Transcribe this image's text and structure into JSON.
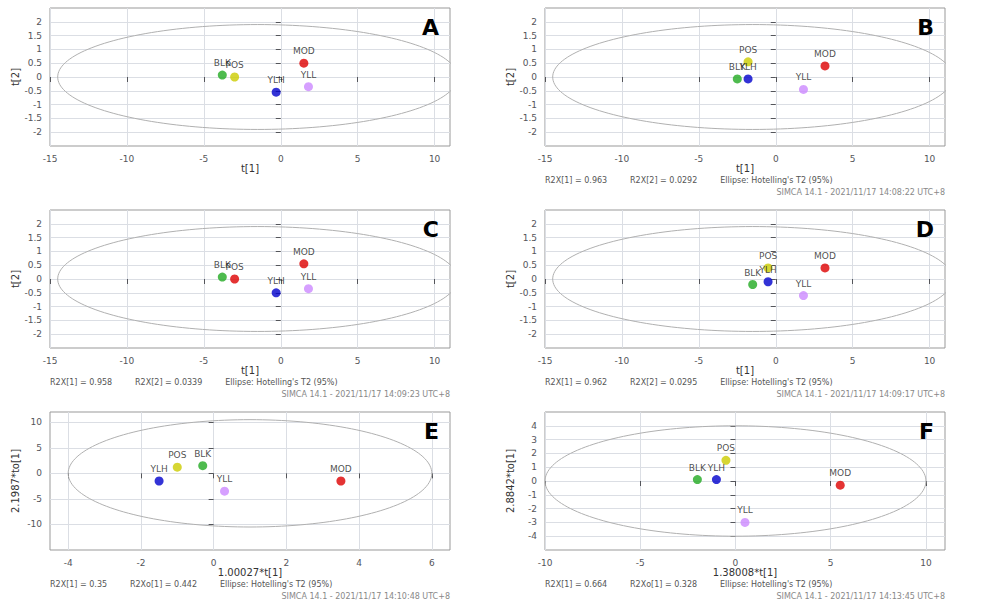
{
  "chart_data": [
    {
      "type": "scatter",
      "title": "A",
      "xlabel": "t[1]",
      "ylabel": "t[2]",
      "xlim": [
        -15,
        11
      ],
      "ylim": [
        -2.5,
        2.5
      ],
      "xticks": [
        -15,
        -10,
        -5,
        0,
        5,
        10
      ],
      "yticks": [
        -2,
        -1.5,
        -1,
        -0.5,
        0,
        0.5,
        1,
        1.5,
        2
      ],
      "grid": true,
      "labels": [
        "MOD",
        "BLK",
        "POS",
        "YLH",
        "YLL"
      ],
      "x": [
        1.5,
        -3.8,
        -3.0,
        -0.3,
        1.8
      ],
      "values": [
        0.5,
        0.07,
        0.0,
        -0.55,
        -0.35
      ],
      "colors": [
        "#dd0000",
        "#22aa22",
        "#cccc00",
        "#0000cc",
        "#cc88ff"
      ],
      "ellipse": {
        "cx": -1.5,
        "cy": 0,
        "rx": 13.0,
        "ry": 1.9
      }
    },
    {
      "type": "scatter",
      "title": "B",
      "xlabel": "t[1]",
      "ylabel": "t[2]",
      "xlim": [
        -15,
        11
      ],
      "ylim": [
        -2.5,
        2.5
      ],
      "xticks": [
        -15,
        -10,
        -5,
        0,
        5,
        10
      ],
      "yticks": [
        -2,
        -1.5,
        -1,
        -0.5,
        0,
        0.5,
        1,
        1.5,
        2
      ],
      "grid": true,
      "labels": [
        "MOD",
        "POS",
        "BLK",
        "YLH",
        "YLL"
      ],
      "x": [
        3.2,
        -1.8,
        -2.5,
        -1.8,
        1.8
      ],
      "values": [
        0.4,
        0.55,
        -0.07,
        -0.07,
        -0.45
      ],
      "colors": [
        "#dd0000",
        "#cccc00",
        "#22aa22",
        "#0000cc",
        "#cc88ff"
      ],
      "ellipse": {
        "cx": -1.5,
        "cy": 0,
        "rx": 13.0,
        "ry": 1.9
      },
      "footer": "R2X[1] = 0.963         R2X[2] = 0.0292         Ellipse: Hotelling's T2 (95%)",
      "footer_right": "SIMCA 14.1 - 2021/11/17 14:08:22 UTC+8"
    },
    {
      "type": "scatter",
      "title": "C",
      "xlabel": "t[1]",
      "ylabel": "t[2]",
      "xlim": [
        -15,
        11
      ],
      "ylim": [
        -2.5,
        2.5
      ],
      "xticks": [
        -15,
        -10,
        -5,
        0,
        5,
        10
      ],
      "yticks": [
        -2,
        -1.5,
        -1,
        -0.5,
        0,
        0.5,
        1,
        1.5,
        2
      ],
      "grid": true,
      "labels": [
        "MOD",
        "BLK",
        "POS",
        "YLH",
        "YLL"
      ],
      "x": [
        1.5,
        -3.8,
        -3.0,
        -0.3,
        1.8
      ],
      "values": [
        0.55,
        0.07,
        0.0,
        -0.5,
        -0.35
      ],
      "colors": [
        "#dd0000",
        "#22aa22",
        "#dd0000",
        "#0000cc",
        "#cc88ff"
      ],
      "ellipse": {
        "cx": -1.5,
        "cy": 0,
        "rx": 13.0,
        "ry": 1.9
      },
      "footer": "R2X[1] = 0.958         R2X[2] = 0.0339         Ellipse: Hotelling's T2 (95%)",
      "footer_right": "SIMCA 14.1 - 2021/11/17 14:09:23 UTC+8"
    },
    {
      "type": "scatter",
      "title": "D",
      "xlabel": "t[1]",
      "ylabel": "t[2]",
      "xlim": [
        -15,
        11
      ],
      "ylim": [
        -2.5,
        2.5
      ],
      "xticks": [
        -15,
        -10,
        -5,
        0,
        5,
        10
      ],
      "yticks": [
        -2,
        -1.5,
        -1,
        -0.5,
        0,
        0.5,
        1,
        1.5,
        2
      ],
      "grid": true,
      "labels": [
        "MOD",
        "POS",
        "BLK",
        "YLH",
        "YLL"
      ],
      "x": [
        3.2,
        -0.5,
        -1.5,
        -0.5,
        1.8
      ],
      "values": [
        0.4,
        0.4,
        -0.2,
        -0.1,
        -0.6
      ],
      "colors": [
        "#dd0000",
        "#cccc00",
        "#22aa22",
        "#0000cc",
        "#cc88ff"
      ],
      "ellipse": {
        "cx": -1.5,
        "cy": 0,
        "rx": 13.0,
        "ry": 1.9
      },
      "footer": "R2X[1] = 0.962         R2X[2] = 0.0295         Ellipse: Hotelling's T2 (95%)",
      "footer_right": "SIMCA 14.1 - 2021/11/17 14:09:17 UTC+8"
    },
    {
      "type": "scatter",
      "title": "E",
      "xlabel": "1.00027*t[1]",
      "ylabel": "2.1987*to[1]",
      "xlim": [
        -4.5,
        6.5
      ],
      "ylim": [
        -15,
        12
      ],
      "xticks": [
        -4,
        -2,
        0,
        2,
        4,
        6
      ],
      "yticks": [
        -10,
        -5,
        0,
        5,
        10
      ],
      "grid": true,
      "labels": [
        "MOD",
        "BLK",
        "POS",
        "YLH",
        "YLL"
      ],
      "x": [
        3.5,
        -0.3,
        -1.0,
        -1.5,
        0.3
      ],
      "values": [
        -1.5,
        1.5,
        1.2,
        -1.5,
        -3.5
      ],
      "colors": [
        "#dd0000",
        "#22aa22",
        "#cccc00",
        "#0000cc",
        "#cc88ff"
      ],
      "ellipse": {
        "cx": 1.0,
        "cy": 0,
        "rx": 5.0,
        "ry": 10.5
      },
      "footer": "R2X[1] = 0.35         R2Xo[1] = 0.442         Ellipse: Hotelling's T2 (95%)",
      "footer_right": "SIMCA 14.1 - 2021/11/17 14:10:48 UTC+8"
    },
    {
      "type": "scatter",
      "title": "F",
      "xlabel": "1.38008*t[1]",
      "ylabel": "2.8842*to[1]",
      "xlim": [
        -10,
        11
      ],
      "ylim": [
        -5,
        5
      ],
      "xticks": [
        -10,
        -5,
        0,
        5,
        10
      ],
      "yticks": [
        -4,
        -3,
        -2,
        -1,
        0,
        1,
        2,
        3,
        4
      ],
      "grid": true,
      "labels": [
        "MOD",
        "POS",
        "BLK",
        "YLH",
        "YLL"
      ],
      "x": [
        5.5,
        -0.5,
        -2.0,
        -1.0,
        0.5
      ],
      "values": [
        -0.3,
        1.5,
        0.1,
        0.1,
        -3.0
      ],
      "colors": [
        "#dd0000",
        "#cccc00",
        "#22aa22",
        "#0000cc",
        "#cc88ff"
      ],
      "ellipse": {
        "cx": 0.0,
        "cy": 0,
        "rx": 10.0,
        "ry": 4.0
      },
      "footer": "R2X[1] = 0.664         R2Xo[1] = 0.328         Ellipse: Hotelling's T2 (95%)",
      "footer_right": "SIMCA 14.1 - 2021/11/17 14:13:45 UTC+8"
    }
  ]
}
